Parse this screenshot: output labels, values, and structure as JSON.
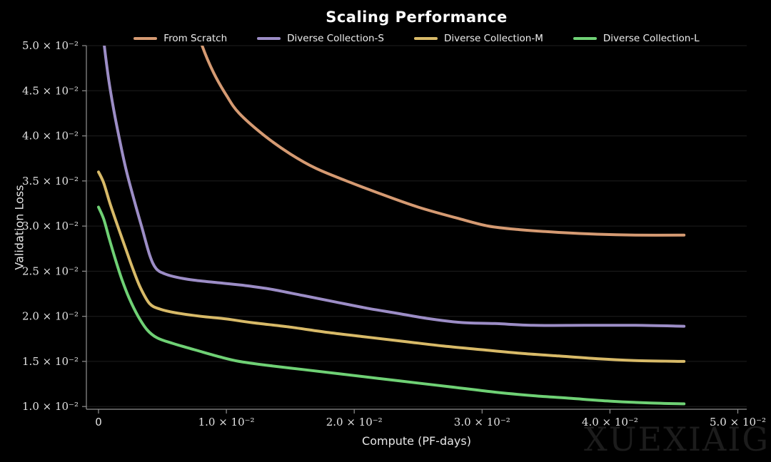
{
  "title": "Scaling Performance",
  "watermark": "XUEXIAIGC",
  "colors": {
    "background": "#000000",
    "grid": "#1e1e1e",
    "axis": "#919191",
    "tick_text": "#e2e2e2",
    "title_text": "#ffffff"
  },
  "chart_data": {
    "type": "line",
    "title": "Scaling Performance",
    "xlabel": "Compute (PF-days)",
    "ylabel": "Validation Loss",
    "units_note": "all x and y values are in units of 1e-2; axis labels show scientific notation",
    "xlim": [
      -0.095,
      5.07
    ],
    "ylim": [
      0.97,
      5.0
    ],
    "grid": "horizontal gridlines only, dark gray on black",
    "legend_position": "top, horizontal row",
    "xticks": [
      {
        "v": 0,
        "label": "0"
      },
      {
        "v": 1,
        "label": "1.0 × 10⁻²"
      },
      {
        "v": 2,
        "label": "2.0 × 10⁻²"
      },
      {
        "v": 3,
        "label": "3.0 × 10⁻²"
      },
      {
        "v": 4,
        "label": "4.0 × 10⁻²"
      },
      {
        "v": 5,
        "label": "5.0 × 10⁻²"
      }
    ],
    "yticks": [
      {
        "v": 1.0,
        "label": "1.0 × 10⁻²"
      },
      {
        "v": 1.5,
        "label": "1.5 × 10⁻²"
      },
      {
        "v": 2.0,
        "label": "2.0 × 10⁻²"
      },
      {
        "v": 2.5,
        "label": "2.5 × 10⁻²"
      },
      {
        "v": 3.0,
        "label": "3.0 × 10⁻²"
      },
      {
        "v": 3.5,
        "label": "3.5 × 10⁻²"
      },
      {
        "v": 4.0,
        "label": "4.0 × 10⁻²"
      },
      {
        "v": 4.5,
        "label": "4.5 × 10⁻²"
      },
      {
        "v": 5.0,
        "label": "5.0 × 10⁻²"
      }
    ],
    "series": [
      {
        "name": "From Scratch",
        "color": "#d59a72",
        "x": [
          0.72,
          0.81,
          0.9,
          1.0,
          1.1,
          1.3,
          1.5,
          1.7,
          1.94,
          2.2,
          2.5,
          2.8,
          3.05,
          3.3,
          3.6,
          3.9,
          4.2,
          4.58
        ],
        "y": [
          5.4,
          5.0,
          4.7,
          4.45,
          4.25,
          4.0,
          3.8,
          3.64,
          3.5,
          3.36,
          3.21,
          3.09,
          3.0,
          2.96,
          2.93,
          2.91,
          2.9,
          2.9
        ]
      },
      {
        "name": "Diverse Collection-S",
        "color": "#9c8dc6",
        "x": [
          0.02,
          0.045,
          0.08,
          0.12,
          0.17,
          0.22,
          0.28,
          0.34,
          0.4,
          0.45,
          0.52,
          0.62,
          0.75,
          0.95,
          1.15,
          1.35,
          1.6,
          1.85,
          2.1,
          2.35,
          2.6,
          2.85,
          3.1,
          3.4,
          3.8,
          4.2,
          4.58
        ],
        "y": [
          5.35,
          5.0,
          4.62,
          4.28,
          3.92,
          3.6,
          3.28,
          2.98,
          2.68,
          2.53,
          2.47,
          2.43,
          2.4,
          2.37,
          2.34,
          2.3,
          2.23,
          2.16,
          2.09,
          2.03,
          1.97,
          1.93,
          1.92,
          1.9,
          1.9,
          1.9,
          1.89
        ]
      },
      {
        "name": "Diverse Collection-M",
        "color": "#d8ba68",
        "x": [
          0,
          0.04,
          0.09,
          0.15,
          0.21,
          0.27,
          0.33,
          0.4,
          0.48,
          0.6,
          0.8,
          1.0,
          1.2,
          1.5,
          1.8,
          2.1,
          2.4,
          2.7,
          3.0,
          3.3,
          3.6,
          3.9,
          4.2,
          4.58
        ],
        "y": [
          3.6,
          3.48,
          3.25,
          3.0,
          2.76,
          2.52,
          2.31,
          2.14,
          2.08,
          2.04,
          2.0,
          1.97,
          1.93,
          1.88,
          1.82,
          1.77,
          1.72,
          1.67,
          1.63,
          1.59,
          1.56,
          1.53,
          1.51,
          1.5
        ]
      },
      {
        "name": "Diverse Collection-L",
        "color": "#6fd175",
        "x": [
          0,
          0.04,
          0.08,
          0.13,
          0.18,
          0.24,
          0.31,
          0.38,
          0.46,
          0.58,
          0.75,
          0.95,
          1.1,
          1.3,
          1.6,
          1.9,
          2.2,
          2.5,
          2.8,
          3.1,
          3.4,
          3.7,
          4.0,
          4.3,
          4.58
        ],
        "y": [
          3.21,
          3.08,
          2.88,
          2.64,
          2.42,
          2.2,
          2.0,
          1.85,
          1.76,
          1.7,
          1.63,
          1.55,
          1.5,
          1.46,
          1.41,
          1.36,
          1.31,
          1.26,
          1.21,
          1.16,
          1.12,
          1.09,
          1.06,
          1.04,
          1.03
        ]
      }
    ]
  }
}
